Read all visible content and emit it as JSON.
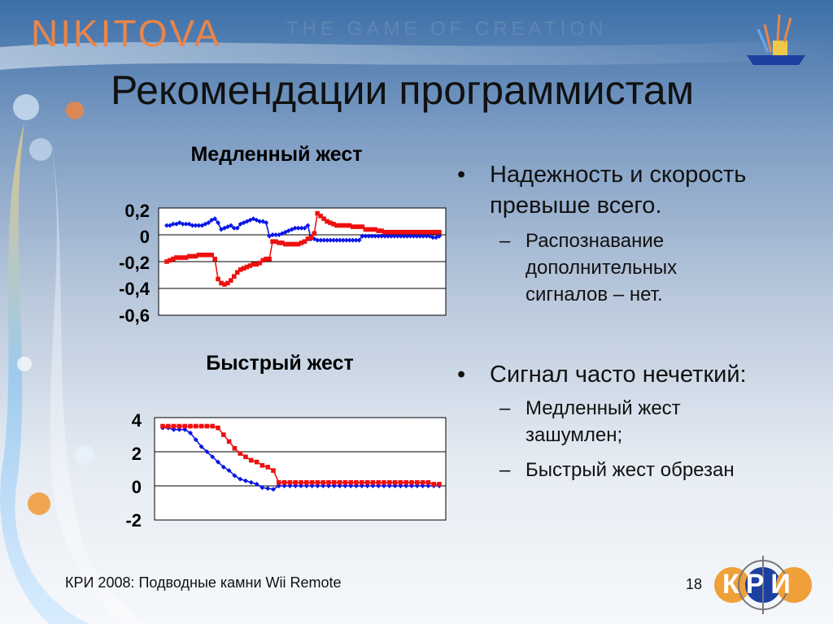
{
  "header": {
    "brand": "NIKITOVA",
    "tagline": "THE GAME OF CREATION"
  },
  "slide": {
    "title": "Рекомендации программистам",
    "bullets": [
      {
        "text": "Надежность и скорость превыше всего.",
        "subs": [
          "Распознавание дополнительных сигналов – нет."
        ]
      },
      {
        "text": "Сигнал часто нечеткий:",
        "subs": [
          "Медленный жест зашумлен;",
          "Быстрый жест обрезан"
        ]
      }
    ]
  },
  "footer": {
    "text": "КРИ 2008: Подводные камни Wii Remote",
    "page": "18",
    "logo_text": "КРИ"
  },
  "colors": {
    "series_blue": "#0a16e6",
    "series_red": "#ee1010",
    "brand_orange": "#e8864a"
  },
  "chart_data": [
    {
      "type": "line",
      "title": "Медленный жест",
      "ylim": [
        -0.6,
        0.2
      ],
      "yticks": [
        "0,2",
        "0",
        "-0,2",
        "-0,4",
        "-0,6"
      ],
      "grid": true,
      "legend": "none",
      "x": [
        0,
        1,
        2,
        3,
        4,
        5,
        6,
        7,
        8,
        9,
        10,
        11,
        12,
        13,
        14,
        15,
        16,
        17,
        18,
        19,
        20,
        21,
        22,
        23,
        24,
        25,
        26,
        27,
        28,
        29,
        30,
        31,
        32,
        33,
        34,
        35,
        36,
        37,
        38,
        39,
        40,
        41,
        42,
        43,
        44,
        45,
        46,
        47,
        48,
        49,
        50,
        51,
        52,
        53,
        54,
        55,
        56,
        57,
        58,
        59,
        60,
        61,
        62,
        63,
        64,
        65,
        66,
        67,
        68,
        69,
        70,
        71,
        72,
        73,
        74,
        75,
        76,
        77,
        78,
        79,
        80,
        81,
        82,
        83,
        84,
        85
      ],
      "series": [
        {
          "color": "blue",
          "values": [
            0.07,
            0.07,
            0.08,
            0.08,
            0.09,
            0.08,
            0.08,
            0.08,
            0.07,
            0.07,
            0.07,
            0.07,
            0.08,
            0.09,
            0.11,
            0.12,
            0.09,
            0.04,
            0.05,
            0.06,
            0.07,
            0.05,
            0.05,
            0.08,
            0.09,
            0.1,
            0.11,
            0.12,
            0.11,
            0.1,
            0.1,
            0.09,
            -0.01,
            0.0,
            0.0,
            0.0,
            0.01,
            0.02,
            0.03,
            0.04,
            0.05,
            0.05,
            0.05,
            0.05,
            0.07,
            -0.03,
            -0.03,
            -0.04,
            -0.04,
            -0.04,
            -0.04,
            -0.04,
            -0.04,
            -0.04,
            -0.04,
            -0.04,
            -0.04,
            -0.04,
            -0.04,
            -0.04,
            -0.04,
            -0.01,
            -0.01,
            -0.01,
            -0.01,
            -0.01,
            -0.01,
            -0.01,
            -0.01,
            -0.01,
            -0.01,
            -0.01,
            -0.01,
            -0.01,
            -0.01,
            -0.01,
            -0.01,
            -0.01,
            -0.01,
            -0.01,
            -0.01,
            -0.01,
            -0.01,
            -0.02,
            -0.02,
            -0.01
          ]
        },
        {
          "color": "red",
          "values": [
            -0.2,
            -0.19,
            -0.18,
            -0.17,
            -0.17,
            -0.17,
            -0.17,
            -0.16,
            -0.16,
            -0.16,
            -0.15,
            -0.15,
            -0.15,
            -0.15,
            -0.15,
            -0.18,
            -0.33,
            -0.36,
            -0.37,
            -0.36,
            -0.34,
            -0.31,
            -0.28,
            -0.26,
            -0.25,
            -0.24,
            -0.23,
            -0.22,
            -0.22,
            -0.21,
            -0.19,
            -0.18,
            -0.18,
            -0.05,
            -0.05,
            -0.06,
            -0.06,
            -0.07,
            -0.07,
            -0.07,
            -0.07,
            -0.07,
            -0.06,
            -0.05,
            -0.03,
            -0.02,
            0.01,
            0.16,
            0.14,
            0.12,
            0.1,
            0.09,
            0.08,
            0.07,
            0.07,
            0.07,
            0.07,
            0.07,
            0.06,
            0.06,
            0.06,
            0.06,
            0.04,
            0.04,
            0.04,
            0.04,
            0.03,
            0.03,
            0.02,
            0.02,
            0.02,
            0.02,
            0.02,
            0.02,
            0.02,
            0.02,
            0.02,
            0.02,
            0.02,
            0.02,
            0.02,
            0.02,
            0.02,
            0.02,
            0.02,
            0.02
          ]
        }
      ]
    },
    {
      "type": "line",
      "title": "Быстрый жест",
      "ylim": [
        -2,
        4
      ],
      "yticks": [
        "4",
        "2",
        "0",
        "-2"
      ],
      "grid": true,
      "legend": "none",
      "x": [
        0,
        1,
        2,
        3,
        4,
        5,
        6,
        7,
        8,
        9,
        10,
        11,
        12,
        13,
        14,
        15,
        16,
        17,
        18,
        19,
        20,
        21,
        22,
        23,
        24,
        25,
        26,
        27,
        28,
        29,
        30,
        31,
        32,
        33,
        34,
        35,
        36,
        37,
        38,
        39,
        40,
        41,
        42,
        43,
        44,
        45,
        46,
        47,
        48,
        49,
        50
      ],
      "series": [
        {
          "color": "blue",
          "values": [
            3.4,
            3.4,
            3.3,
            3.3,
            3.3,
            3.1,
            2.7,
            2.3,
            2.0,
            1.7,
            1.4,
            1.1,
            0.9,
            0.6,
            0.4,
            0.3,
            0.2,
            0.1,
            -0.1,
            -0.15,
            -0.2,
            0.0,
            0.0,
            0.0,
            0.0,
            0.0,
            0.0,
            0.0,
            0.0,
            0.0,
            0.0,
            0.0,
            0.0,
            0.0,
            0.0,
            0.0,
            0.0,
            0.0,
            0.0,
            0.0,
            0.0,
            0.0,
            0.0,
            0.0,
            0.0,
            0.0,
            0.0,
            0.0,
            0.0,
            0.0,
            0.0
          ]
        },
        {
          "color": "red",
          "values": [
            3.5,
            3.5,
            3.5,
            3.5,
            3.5,
            3.5,
            3.5,
            3.5,
            3.5,
            3.5,
            3.4,
            3.0,
            2.6,
            2.2,
            1.9,
            1.7,
            1.5,
            1.4,
            1.2,
            1.1,
            0.9,
            0.2,
            0.2,
            0.2,
            0.2,
            0.2,
            0.2,
            0.2,
            0.2,
            0.2,
            0.2,
            0.2,
            0.2,
            0.2,
            0.2,
            0.2,
            0.2,
            0.2,
            0.2,
            0.2,
            0.2,
            0.2,
            0.2,
            0.2,
            0.2,
            0.2,
            0.2,
            0.2,
            0.2,
            0.1,
            0.1
          ]
        }
      ]
    }
  ]
}
